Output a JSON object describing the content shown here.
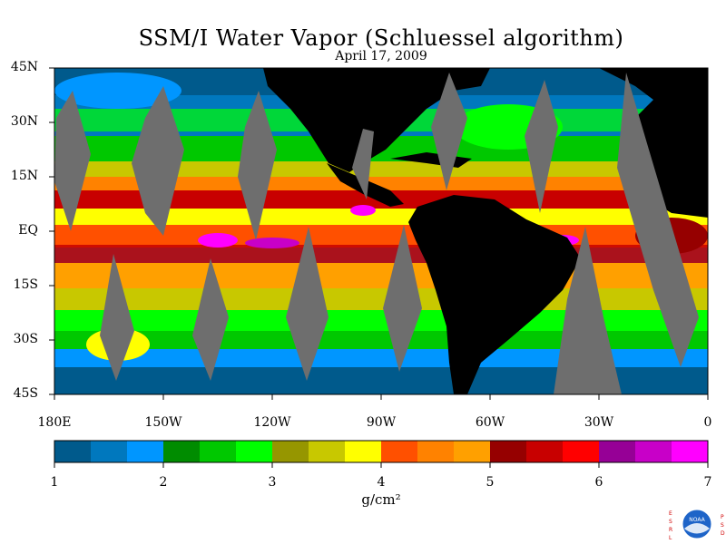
{
  "title": "SSM/I Water Vapor (Schluessel algorithm)",
  "subtitle": "April 17, 2009",
  "map": {
    "lon_range": [
      -180,
      0
    ],
    "lat_range": [
      -45,
      45
    ],
    "lat_labels": [
      "45N",
      "30N",
      "15N",
      "EQ",
      "15S",
      "30S",
      "45S"
    ],
    "lat_values": [
      45,
      30,
      15,
      0,
      -15,
      -30,
      -45
    ],
    "lon_labels": [
      "180E",
      "150W",
      "120W",
      "90W",
      "60W",
      "30W",
      "0"
    ],
    "lon_values": [
      -180,
      -150,
      -120,
      -90,
      -60,
      -30,
      0
    ],
    "land_color": "#000000",
    "missing_data_color": "#6e6e6e"
  },
  "colorbar": {
    "unit": "g/cm²",
    "tick_labels": [
      "1",
      "2",
      "3",
      "4",
      "5",
      "6",
      "7"
    ],
    "range": [
      1,
      7
    ],
    "colors": [
      "#005a8c",
      "#0078be",
      "#0096ff",
      "#008c00",
      "#00c800",
      "#00ff00",
      "#969600",
      "#c8c800",
      "#ffff00",
      "#ff5000",
      "#ff8200",
      "#ffa000",
      "#960000",
      "#c80000",
      "#ff0000",
      "#960096",
      "#c800c8",
      "#ff00ff"
    ]
  },
  "logo": {
    "left_text": "ESRL",
    "right_text": "PSD",
    "center_text": "NOAA"
  }
}
